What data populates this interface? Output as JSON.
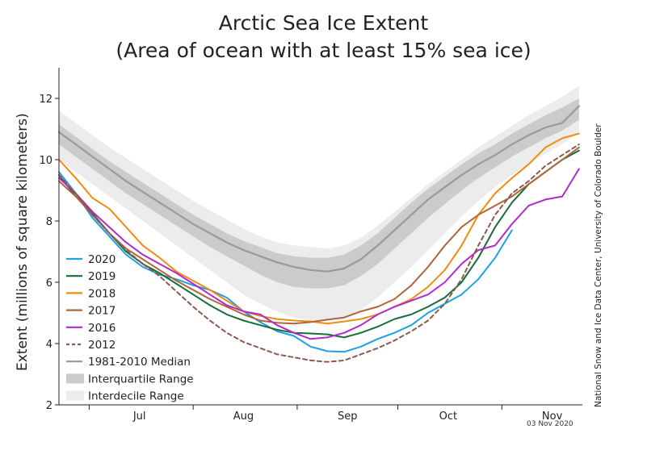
{
  "chart_data": {
    "type": "line",
    "title": "Arctic Sea Ice Extent",
    "subtitle": "(Area of ocean with at least 15% sea ice)",
    "ylabel": "Extent (millions of square kilometers)",
    "xlabel": "",
    "ylim": [
      2,
      13
    ],
    "y_ticks": [
      2,
      4,
      6,
      8,
      10,
      12
    ],
    "x_unit": "day of year",
    "xlim": [
      173,
      329
    ],
    "month_boundaries": [
      182,
      213,
      244,
      274,
      305
    ],
    "month_labels": [
      {
        "label": "Jul",
        "day": 197
      },
      {
        "label": "Aug",
        "day": 228
      },
      {
        "label": "Sep",
        "day": 259
      },
      {
        "label": "Oct",
        "day": 289
      },
      {
        "label": "Nov",
        "day": 320
      }
    ],
    "grid": false,
    "legend_position": "lower-left",
    "date_stamp": "03 Nov 2020",
    "credit": "National Snow and Ice Data Center, University of Colorado Boulder",
    "series": [
      {
        "name": "2020",
        "color": "#1ca0e6",
        "style": "solid",
        "x": [
          173,
          178,
          183,
          188,
          193,
          198,
          203,
          208,
          213,
          218,
          223,
          228,
          233,
          238,
          243,
          248,
          253,
          258,
          263,
          268,
          273,
          278,
          283,
          288,
          293,
          298,
          303,
          308
        ],
        "y": [
          9.6,
          8.9,
          8.1,
          7.5,
          6.9,
          6.5,
          6.25,
          6.1,
          5.9,
          5.75,
          5.5,
          5.05,
          4.7,
          4.4,
          4.25,
          3.9,
          3.75,
          3.73,
          3.9,
          4.15,
          4.35,
          4.6,
          5.0,
          5.3,
          5.6,
          6.1,
          6.8,
          7.7
        ]
      },
      {
        "name": "2019",
        "color": "#176e3a",
        "style": "solid",
        "x": [
          173,
          178,
          183,
          188,
          193,
          198,
          203,
          208,
          213,
          218,
          223,
          228,
          233,
          238,
          243,
          248,
          253,
          258,
          263,
          268,
          273,
          278,
          283,
          288,
          293,
          298,
          303,
          308,
          313,
          318,
          323,
          328
        ],
        "y": [
          9.5,
          8.8,
          8.25,
          7.6,
          7.0,
          6.6,
          6.3,
          5.95,
          5.6,
          5.25,
          4.95,
          4.75,
          4.6,
          4.45,
          4.35,
          4.33,
          4.3,
          4.2,
          4.35,
          4.55,
          4.8,
          4.95,
          5.2,
          5.5,
          6.0,
          6.8,
          7.8,
          8.6,
          9.2,
          9.6,
          10.0,
          10.3
        ]
      },
      {
        "name": "2018",
        "color": "#f18b14",
        "style": "solid",
        "x": [
          173,
          178,
          183,
          188,
          193,
          198,
          203,
          208,
          213,
          218,
          223,
          228,
          233,
          238,
          243,
          248,
          253,
          258,
          263,
          268,
          273,
          278,
          283,
          288,
          293,
          298,
          303,
          308,
          313,
          318,
          323,
          328
        ],
        "y": [
          10.0,
          9.4,
          8.75,
          8.4,
          7.8,
          7.2,
          6.8,
          6.35,
          6.05,
          5.75,
          5.4,
          5.05,
          4.9,
          4.8,
          4.75,
          4.72,
          4.65,
          4.72,
          4.8,
          4.95,
          5.2,
          5.45,
          5.85,
          6.4,
          7.2,
          8.2,
          8.9,
          9.4,
          9.85,
          10.4,
          10.7,
          10.85
        ]
      },
      {
        "name": "2017",
        "color": "#b0653a",
        "style": "solid",
        "x": [
          173,
          178,
          183,
          188,
          193,
          198,
          203,
          208,
          213,
          218,
          223,
          228,
          233,
          238,
          243,
          248,
          253,
          258,
          263,
          268,
          273,
          278,
          283,
          288,
          293,
          298,
          303,
          308,
          313,
          318,
          323,
          328
        ],
        "y": [
          9.3,
          8.8,
          8.2,
          7.6,
          7.1,
          6.75,
          6.4,
          6.05,
          5.75,
          5.45,
          5.2,
          4.95,
          4.75,
          4.68,
          4.65,
          4.7,
          4.78,
          4.85,
          5.05,
          5.2,
          5.45,
          5.9,
          6.5,
          7.2,
          7.8,
          8.2,
          8.5,
          8.8,
          9.2,
          9.6,
          10.0,
          10.4
        ]
      },
      {
        "name": "2016",
        "color": "#b12bcc",
        "style": "solid",
        "x": [
          173,
          178,
          183,
          188,
          193,
          198,
          203,
          208,
          213,
          218,
          223,
          228,
          233,
          238,
          243,
          248,
          253,
          258,
          263,
          268,
          273,
          278,
          283,
          288,
          293,
          298,
          303,
          308,
          313,
          318,
          323,
          328
        ],
        "y": [
          9.4,
          8.9,
          8.3,
          7.8,
          7.3,
          6.9,
          6.6,
          6.3,
          5.95,
          5.6,
          5.25,
          5.05,
          4.95,
          4.6,
          4.35,
          4.15,
          4.2,
          4.35,
          4.6,
          4.95,
          5.2,
          5.4,
          5.6,
          6.0,
          6.6,
          7.05,
          7.2,
          7.9,
          8.5,
          8.7,
          8.8,
          9.7
        ]
      },
      {
        "name": "2012",
        "color": "#8a5a4e",
        "style": "dashed",
        "x": [
          173,
          178,
          183,
          188,
          193,
          198,
          203,
          208,
          213,
          218,
          223,
          228,
          233,
          238,
          243,
          248,
          253,
          258,
          263,
          268,
          273,
          278,
          283,
          288,
          293,
          298,
          303,
          308,
          313,
          318,
          323,
          328
        ],
        "y": [
          9.5,
          8.9,
          8.2,
          7.6,
          7.05,
          6.6,
          6.2,
          5.7,
          5.2,
          4.75,
          4.35,
          4.05,
          3.85,
          3.65,
          3.55,
          3.45,
          3.4,
          3.45,
          3.65,
          3.85,
          4.1,
          4.4,
          4.75,
          5.3,
          6.1,
          7.2,
          8.2,
          8.9,
          9.3,
          9.8,
          10.15,
          10.5
        ]
      },
      {
        "name": "1981-2010 Median",
        "color": "#9a9a9a",
        "style": "solid",
        "x": [
          173,
          178,
          183,
          188,
          193,
          198,
          203,
          208,
          213,
          218,
          223,
          228,
          233,
          238,
          243,
          248,
          253,
          258,
          263,
          268,
          273,
          278,
          283,
          288,
          293,
          298,
          303,
          308,
          313,
          318,
          323,
          328
        ],
        "y": [
          10.9,
          10.5,
          10.1,
          9.7,
          9.3,
          8.95,
          8.6,
          8.25,
          7.9,
          7.6,
          7.3,
          7.05,
          6.85,
          6.65,
          6.5,
          6.4,
          6.35,
          6.45,
          6.75,
          7.2,
          7.7,
          8.2,
          8.7,
          9.1,
          9.5,
          9.85,
          10.15,
          10.5,
          10.8,
          11.05,
          11.2,
          11.75
        ]
      }
    ],
    "bands": [
      {
        "name": "Interdecile Range",
        "color": "#ececec",
        "x": [
          173,
          178,
          183,
          188,
          193,
          198,
          203,
          208,
          213,
          218,
          223,
          228,
          233,
          238,
          243,
          248,
          253,
          258,
          263,
          268,
          273,
          278,
          283,
          288,
          293,
          298,
          303,
          308,
          313,
          318,
          323,
          328
        ],
        "lower": [
          10.0,
          9.6,
          9.2,
          8.8,
          8.4,
          8.0,
          7.6,
          7.2,
          6.8,
          6.4,
          6.0,
          5.6,
          5.3,
          5.05,
          4.85,
          4.75,
          4.75,
          4.85,
          5.1,
          5.5,
          6.0,
          6.5,
          7.05,
          7.6,
          8.15,
          8.65,
          9.1,
          9.5,
          9.85,
          10.2,
          10.5,
          10.9
        ],
        "upper": [
          11.6,
          11.2,
          10.8,
          10.4,
          10.05,
          9.7,
          9.35,
          9.0,
          8.65,
          8.35,
          8.05,
          7.75,
          7.5,
          7.3,
          7.2,
          7.15,
          7.1,
          7.2,
          7.45,
          7.85,
          8.3,
          8.75,
          9.2,
          9.6,
          10.0,
          10.4,
          10.75,
          11.1,
          11.45,
          11.75,
          12.05,
          12.4
        ]
      },
      {
        "name": "Interquartile Range",
        "color": "#cbcbcb",
        "x": [
          173,
          178,
          183,
          188,
          193,
          198,
          203,
          208,
          213,
          218,
          223,
          228,
          233,
          238,
          243,
          248,
          253,
          258,
          263,
          268,
          273,
          278,
          283,
          288,
          293,
          298,
          303,
          308,
          313,
          318,
          323,
          328
        ],
        "lower": [
          10.5,
          10.1,
          9.7,
          9.3,
          8.9,
          8.55,
          8.2,
          7.85,
          7.5,
          7.15,
          6.85,
          6.55,
          6.25,
          6.0,
          5.85,
          5.8,
          5.8,
          5.9,
          6.2,
          6.6,
          7.1,
          7.6,
          8.1,
          8.55,
          9.0,
          9.4,
          9.75,
          10.1,
          10.4,
          10.7,
          10.95,
          11.3
        ],
        "upper": [
          11.15,
          10.75,
          10.35,
          9.95,
          9.6,
          9.25,
          8.9,
          8.55,
          8.2,
          7.9,
          7.6,
          7.35,
          7.15,
          6.95,
          6.85,
          6.8,
          6.8,
          6.9,
          7.2,
          7.6,
          8.1,
          8.6,
          9.05,
          9.45,
          9.85,
          10.2,
          10.5,
          10.85,
          11.15,
          11.45,
          11.7,
          12.0
        ]
      }
    ],
    "legend": [
      {
        "label": "2020",
        "kind": "line",
        "color": "#1ca0e6",
        "style": "solid"
      },
      {
        "label": "2019",
        "kind": "line",
        "color": "#176e3a",
        "style": "solid"
      },
      {
        "label": "2018",
        "kind": "line",
        "color": "#f18b14",
        "style": "solid"
      },
      {
        "label": "2017",
        "kind": "line",
        "color": "#b0653a",
        "style": "solid"
      },
      {
        "label": "2016",
        "kind": "line",
        "color": "#b12bcc",
        "style": "solid"
      },
      {
        "label": "2012",
        "kind": "line",
        "color": "#8a5a4e",
        "style": "dashed"
      },
      {
        "label": "1981-2010 Median",
        "kind": "line",
        "color": "#9a9a9a",
        "style": "solid"
      },
      {
        "label": "Interquartile Range",
        "kind": "band",
        "color": "#cbcbcb"
      },
      {
        "label": "Interdecile Range",
        "kind": "band",
        "color": "#ececec"
      }
    ]
  }
}
